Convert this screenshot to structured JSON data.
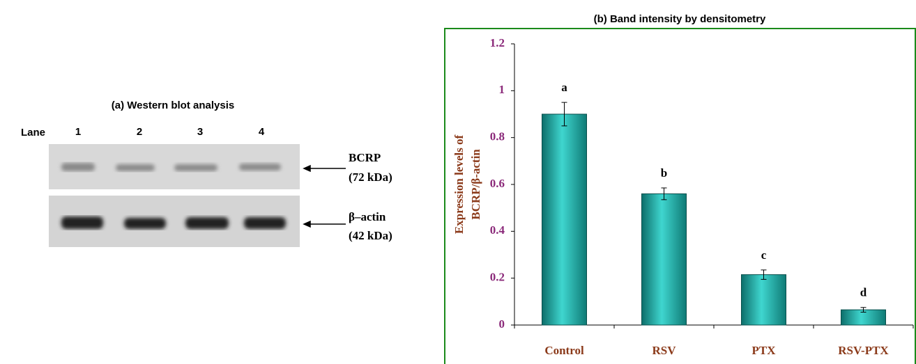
{
  "western_blot": {
    "title": "(a)  Western blot analysis",
    "lane_label": "Lane",
    "lanes": [
      "1",
      "2",
      "3",
      "4"
    ],
    "bands": [
      {
        "name": "BCRP",
        "weight": "(72 kDa)"
      },
      {
        "name": "β–actin",
        "weight": "(42 kDa)"
      }
    ]
  },
  "chart_data": {
    "type": "bar",
    "title": "(b) Band intensity  by densitometry",
    "ylabel": [
      "Expression levels of",
      "BCRP/β-actin"
    ],
    "categories": [
      "Control",
      "RSV",
      "PTX",
      "RSV-PTX"
    ],
    "values": [
      0.9,
      0.56,
      0.215,
      0.065
    ],
    "errors": [
      0.05,
      0.025,
      0.02,
      0.01
    ],
    "annotations": [
      "a",
      "b",
      "c",
      "d"
    ],
    "color": "#1fb3ad",
    "ylim": [
      0,
      1.2
    ],
    "yticks": [
      0,
      0.2,
      0.4,
      0.6,
      0.8,
      1,
      1.2
    ]
  }
}
